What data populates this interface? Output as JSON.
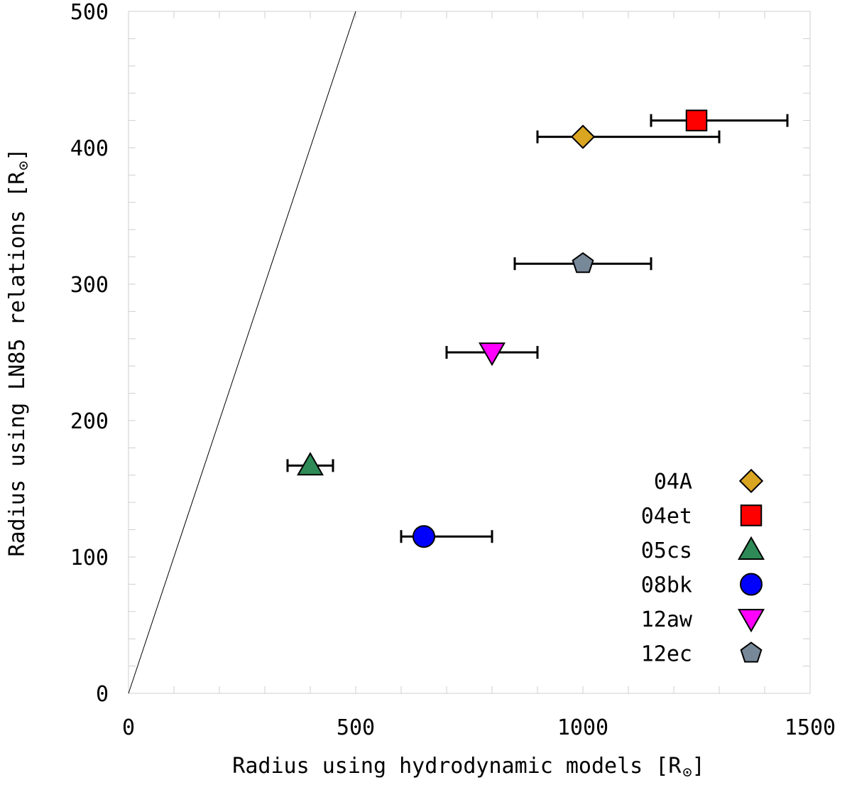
{
  "chart_data": {
    "type": "scatter",
    "title": "",
    "xlabel": "Radius using hydrodynamic models [R",
    "ylabel": "Radius using LN85 relations [R",
    "sun_symbol": "⊙",
    "label_close": "]",
    "xlim": [
      0,
      1500
    ],
    "ylim": [
      0,
      500
    ],
    "xticks": [
      0,
      500,
      1000,
      1500
    ],
    "yticks": [
      0,
      100,
      200,
      300,
      400,
      500
    ],
    "xtick_labels": [
      "0",
      "500",
      "1000",
      "1500"
    ],
    "ytick_labels": [
      "0",
      "100",
      "200",
      "300",
      "400",
      "500"
    ],
    "grid": false,
    "legend_position": "bottom-right",
    "reference_line": {
      "x": [
        0,
        500
      ],
      "y": [
        0,
        500
      ]
    },
    "series": [
      {
        "name": "04A",
        "marker": "diamond",
        "color": "#DAA520",
        "x": 1000,
        "y": 408,
        "xerr": [
          900,
          1300
        ]
      },
      {
        "name": "04et",
        "marker": "square",
        "color": "#FF0000",
        "x": 1250,
        "y": 420,
        "xerr": [
          1150,
          1450
        ]
      },
      {
        "name": "05cs",
        "marker": "triangle-up",
        "color": "#2E8B57",
        "x": 400,
        "y": 167,
        "xerr": [
          350,
          450
        ]
      },
      {
        "name": "08bk",
        "marker": "circle",
        "color": "#0000FF",
        "x": 650,
        "y": 115,
        "xerr": [
          600,
          800
        ]
      },
      {
        "name": "12aw",
        "marker": "triangle-down",
        "color": "#FF00FF",
        "x": 800,
        "y": 250,
        "xerr": [
          700,
          900
        ]
      },
      {
        "name": "12ec",
        "marker": "pentagon",
        "color": "#778899",
        "x": 1000,
        "y": 315,
        "xerr": [
          850,
          1150
        ]
      }
    ]
  }
}
